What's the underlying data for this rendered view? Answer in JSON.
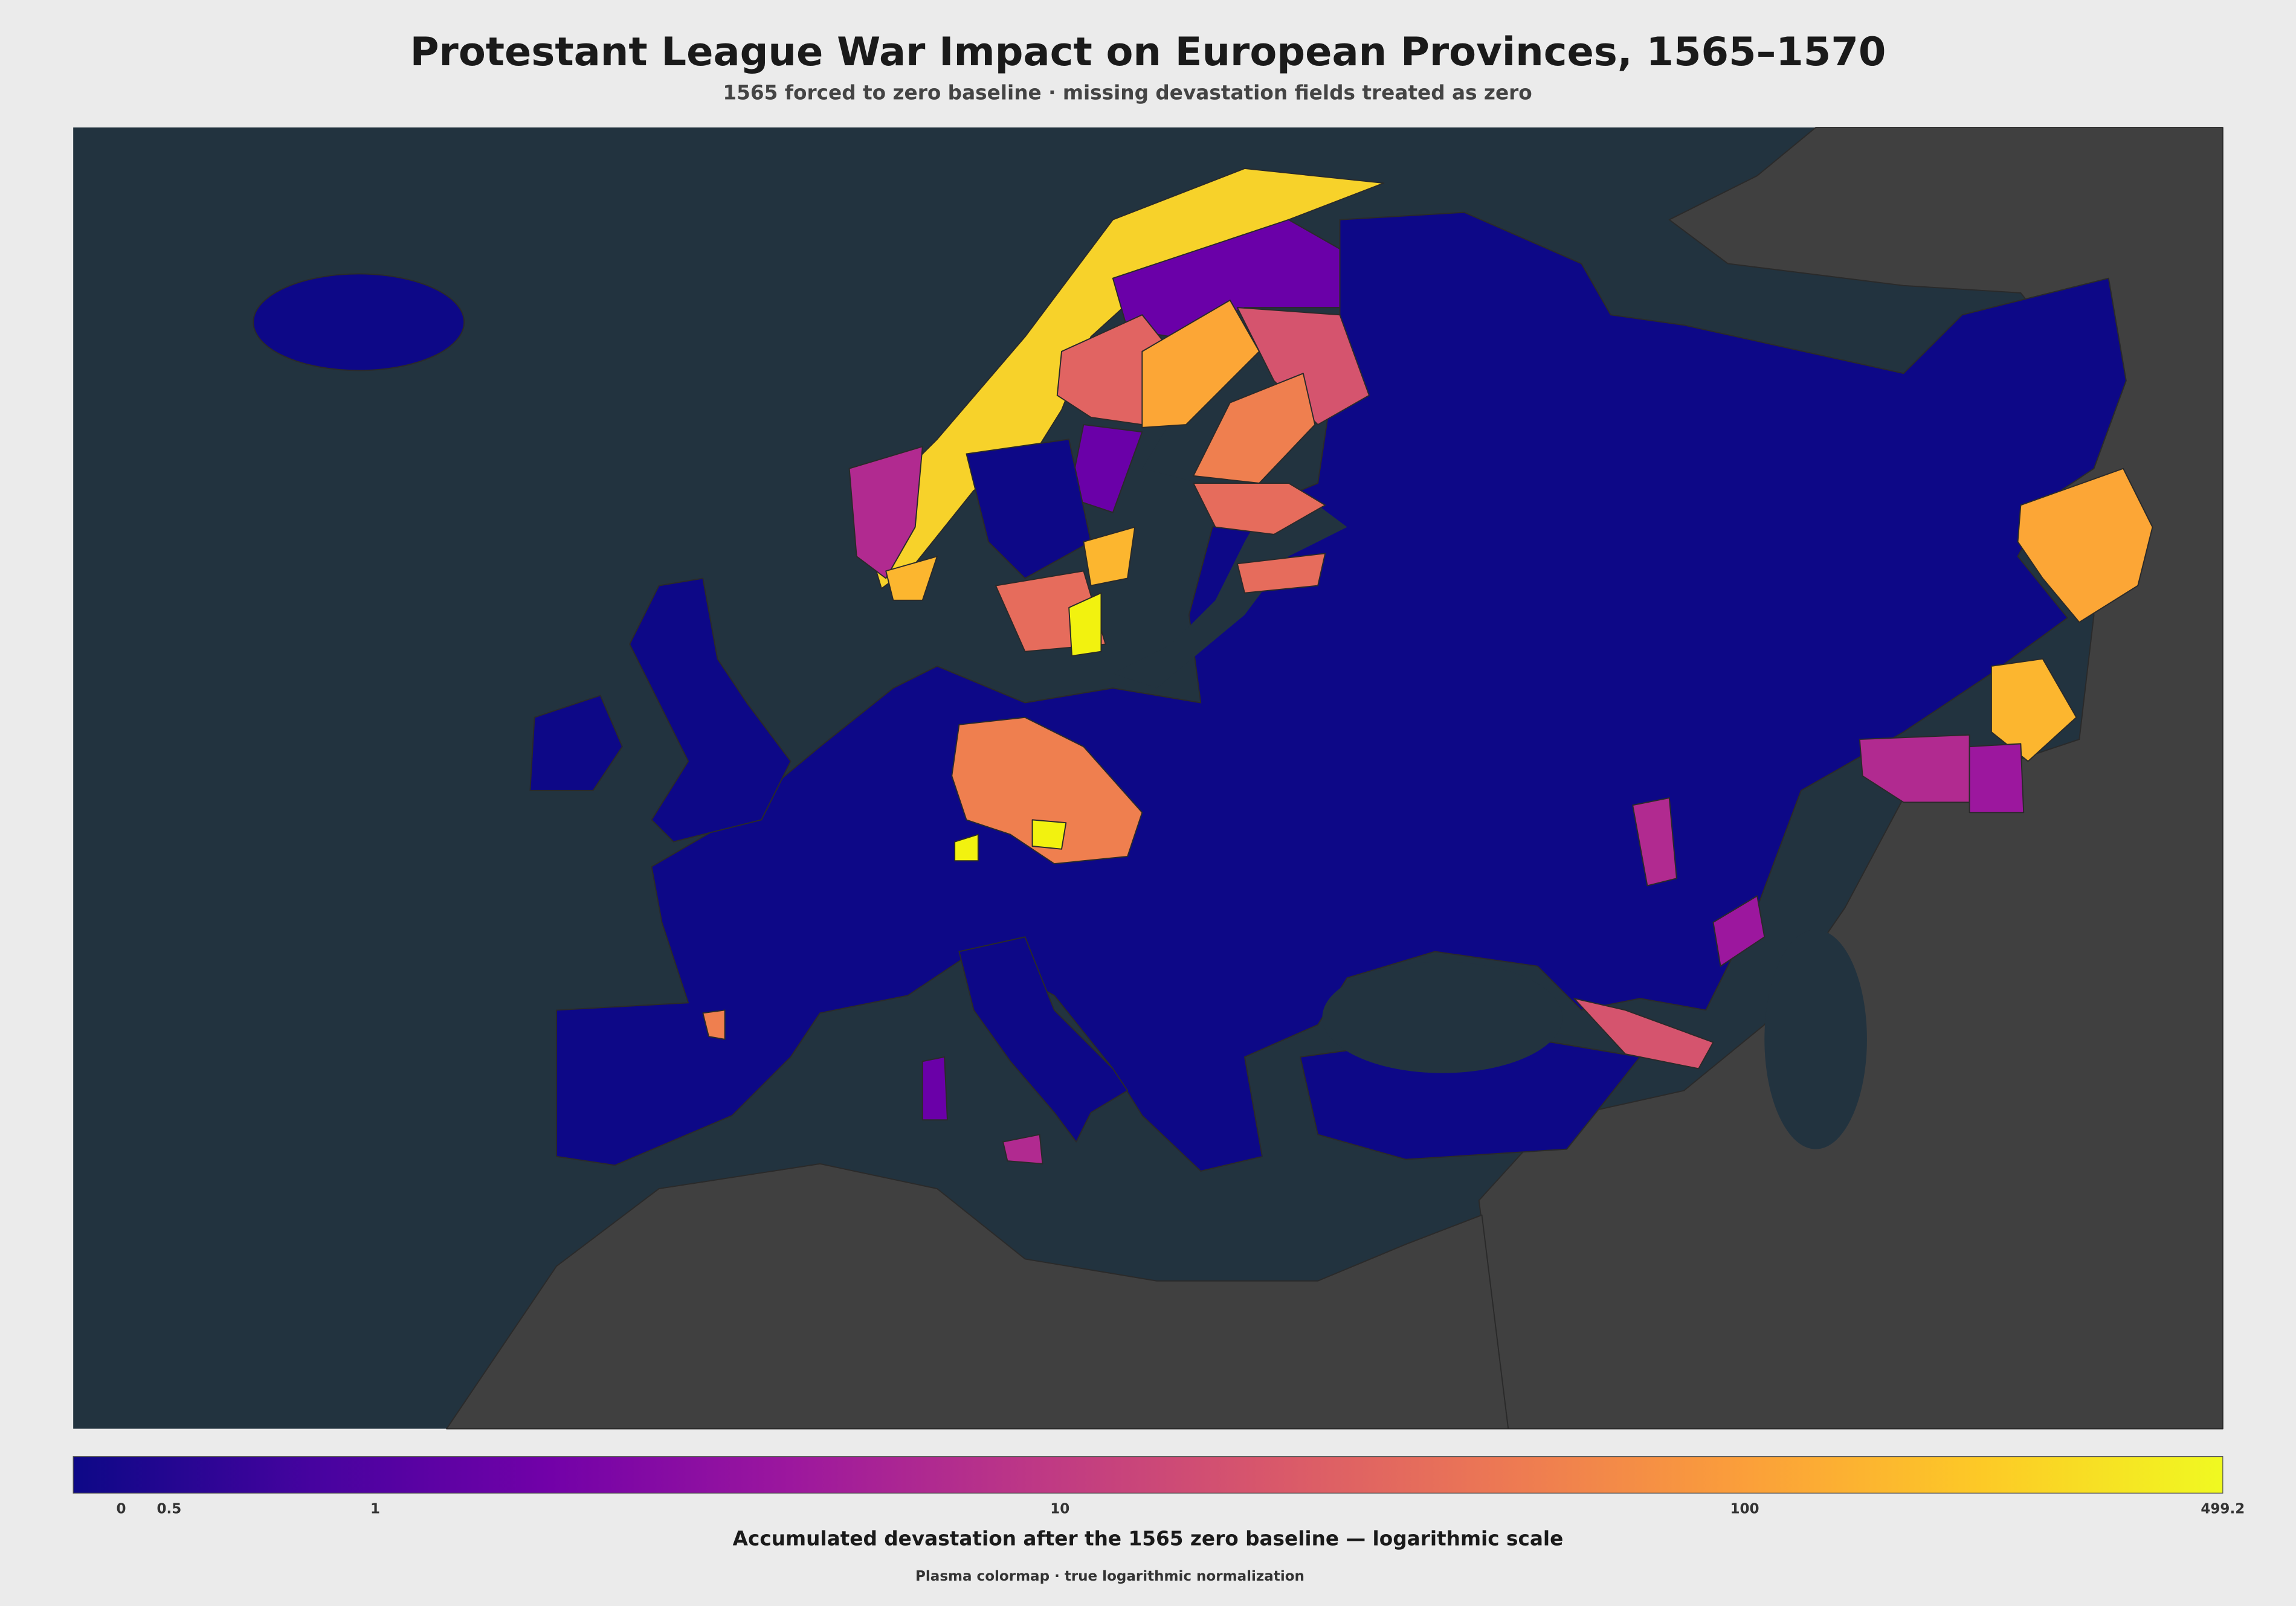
{
  "title": "Protestant League War Impact on European Provinces, 1565–1570",
  "subtitle": "1565 forced to zero baseline · missing devastation fields treated as zero",
  "colorbar": {
    "label": "Accumulated devastation after the 1565 zero baseline — logarithmic scale",
    "note": "Plasma colormap · true logarithmic normalization",
    "colormap": "plasma",
    "scale": "symlog",
    "linthresh": 0.5,
    "linscale": 0.07,
    "lim": [
      -0.5,
      499.2
    ],
    "ticks": [
      0,
      0.5,
      1,
      10,
      100,
      499.2
    ]
  }
}
